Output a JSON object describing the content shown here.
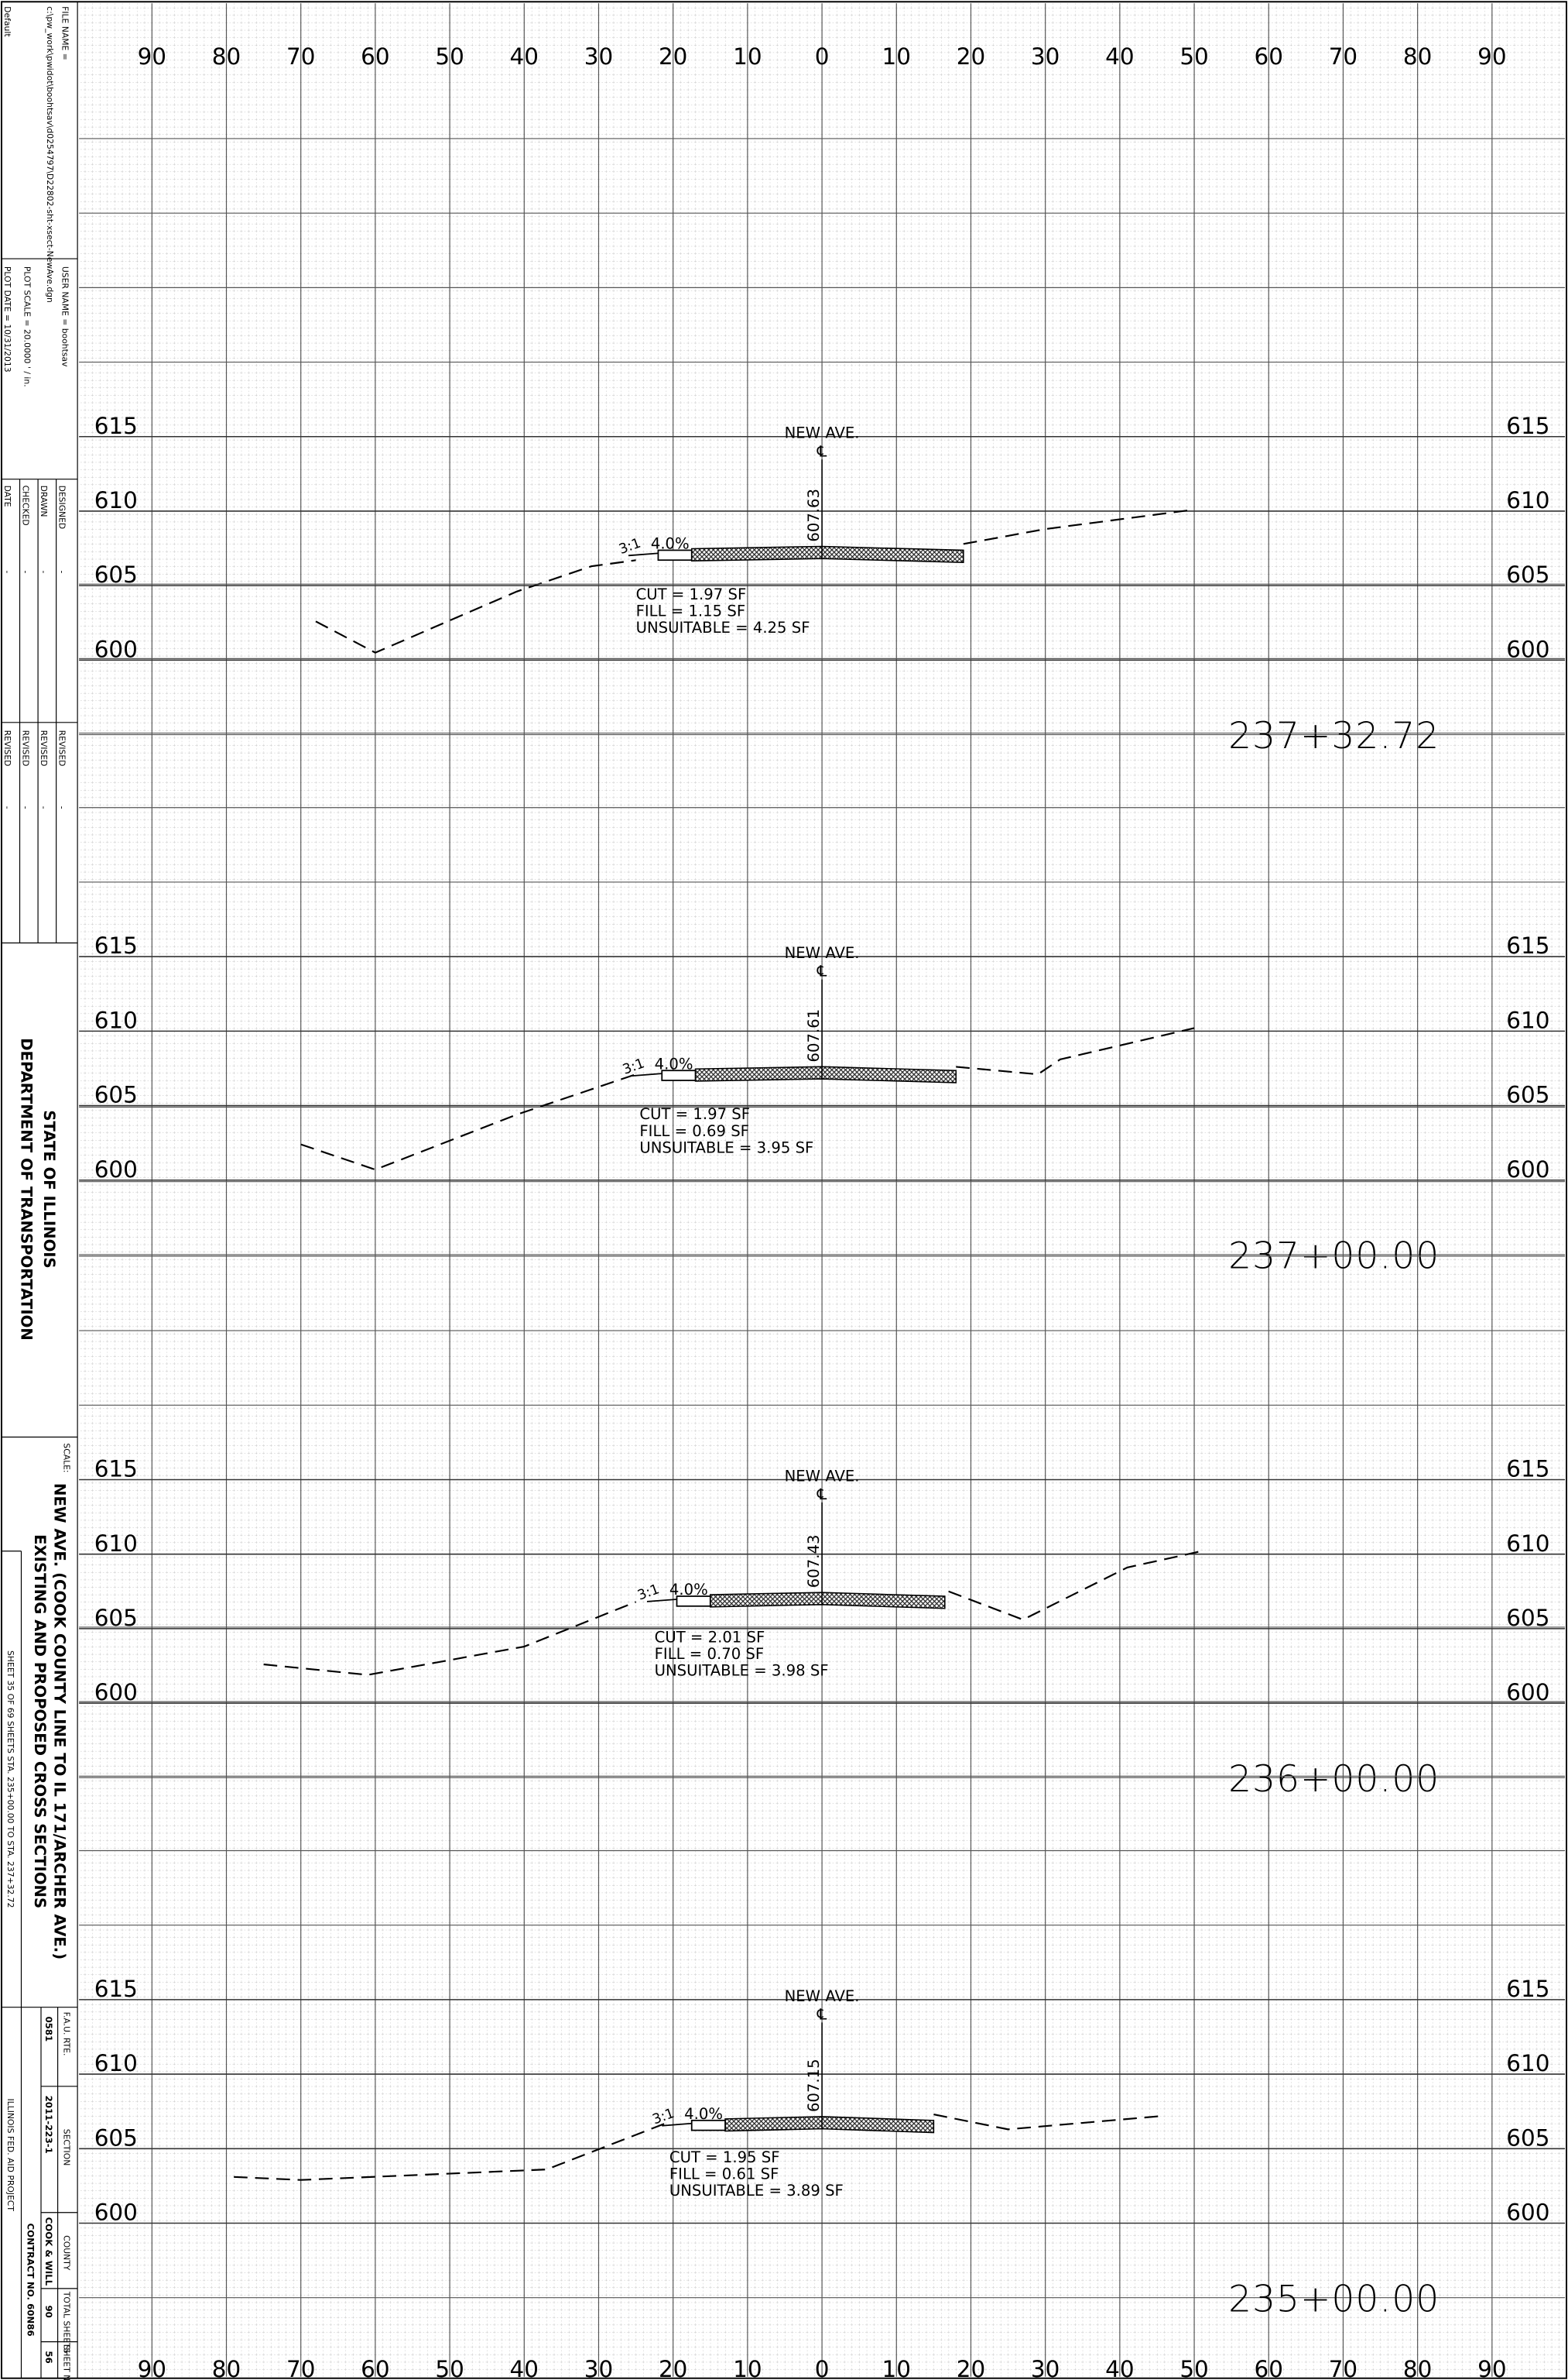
{
  "title_block": {
    "default": "Default",
    "file_name": "FILE NAME =",
    "file_path": "c:\\pw_work\\pwidot\\boohtsav\\d0254797\\D22802-sht-xsect-NewAve.dgn",
    "user_name": "USER NAME = boohtsav",
    "plot_scale": "PLOT SCALE = 20.0000 ' / in.",
    "plot_date": "PLOT DATE = 10/31/2013",
    "signoff": [
      {
        "label": "DESIGNED",
        "value": "-"
      },
      {
        "label": "DRAWN",
        "value": "-"
      },
      {
        "label": "CHECKED",
        "value": "-"
      },
      {
        "label": "DATE",
        "value": "-"
      }
    ],
    "revisions": [
      {
        "label": "REVISED",
        "value": "-"
      },
      {
        "label": "REVISED",
        "value": "-"
      },
      {
        "label": "REVISED",
        "value": "-"
      },
      {
        "label": "REVISED",
        "value": "-"
      }
    ],
    "agency": [
      "STATE OF ILLINOIS",
      "DEPARTMENT OF TRANSPORTATION"
    ],
    "scale": "SCALE:",
    "sheet_title": [
      "NEW AVE. (COOK COUNTY LINE TO IL 171/ARCHER AVE.)",
      "EXISTING AND PROPOSED CROSS SECTIONS"
    ],
    "sheet_ref": "SHEET 35 OF 69 SHEETS STA. 235+00.00 TO STA. 237+32.72",
    "route": [
      {
        "label": "F.A.U. RTE.",
        "value": "0581"
      },
      {
        "label": "SECTION",
        "value": "2011-223-1"
      },
      {
        "label": "COUNTY",
        "value": "COOK & WILL"
      },
      {
        "label": "TOTAL SHEETS",
        "value": "90"
      },
      {
        "label": "SHEET NO.",
        "value": "56"
      }
    ],
    "contract": "CONTRACT NO. 60N86",
    "project": "ILLINOIS FED. AID PROJECT"
  },
  "x_offsets": [
    {
      "value": -90,
      "label": "90"
    },
    {
      "value": -80,
      "label": "80"
    },
    {
      "value": -70,
      "label": "70"
    },
    {
      "value": -60,
      "label": "60"
    },
    {
      "value": -50,
      "label": "50"
    },
    {
      "value": -40,
      "label": "40"
    },
    {
      "value": -30,
      "label": "30"
    },
    {
      "value": -20,
      "label": "20"
    },
    {
      "value": -10,
      "label": "10"
    },
    0,
    10,
    20,
    30,
    40,
    50,
    60,
    70,
    80,
    90
  ],
  "sections": [
    {
      "station": "237+32.72",
      "road": "NEW AVE.",
      "centerline": "℄",
      "profile_grade": 607.63,
      "elevations": [
        615,
        610,
        605,
        600
      ],
      "slope": "3:1",
      "cross_slope": "4.0%",
      "quantities": [
        "CUT = 1.97 SF",
        "FILL = 1.15 SF",
        "UNSUITABLE = 4.25 SF"
      ],
      "ground": {
        "x": [
          -68,
          -60,
          -41,
          -31,
          -25,
          null,
          19,
          30,
          50
        ],
        "y": [
          602.6,
          600.5,
          604.6,
          606.3,
          606.7,
          null,
          607.8,
          608.8,
          610.1
        ]
      }
    },
    {
      "station": "237+00.00",
      "road": "NEW AVE.",
      "centerline": "℄",
      "profile_grade": 607.61,
      "elevations": [
        615,
        610,
        605,
        600
      ],
      "slope": "3:1",
      "cross_slope": "4.0%",
      "quantities": [
        "CUT = 1.97 SF",
        "FILL = 0.69 SF",
        "UNSUITABLE = 3.95 SF"
      ],
      "ground": {
        "x": [
          -70,
          -60,
          -41,
          -25,
          null,
          18,
          29,
          32,
          50
        ],
        "y": [
          602.4,
          600.7,
          604.4,
          607.1,
          null,
          607.6,
          607.1,
          608.1,
          610.2
        ]
      }
    },
    {
      "station": "236+00.00",
      "road": "NEW AVE.",
      "centerline": "℄",
      "profile_grade": 607.43,
      "elevations": [
        615,
        610,
        605,
        600
      ],
      "slope": "3:1",
      "cross_slope": "4.0%",
      "quantities": [
        "CUT = 2.01 SF",
        "FILL = 0.70 SF",
        "UNSUITABLE = 3.98 SF"
      ],
      "ground": {
        "x": [
          -75,
          -61,
          -40,
          -25,
          null,
          17,
          27,
          41,
          51
        ],
        "y": [
          602.6,
          601.9,
          603.8,
          606.8,
          null,
          607.5,
          605.6,
          609.1,
          610.2
        ]
      }
    },
    {
      "station": "235+00.00",
      "road": "NEW AVE.",
      "centerline": "℄",
      "profile_grade": 607.15,
      "elevations": [
        615,
        610,
        605,
        600
      ],
      "slope": "3:1",
      "cross_slope": "4.0%",
      "quantities": [
        "CUT = 1.95 SF",
        "FILL = 0.61 SF",
        "UNSUITABLE = 3.89 SF"
      ],
      "ground": {
        "x": [
          -79,
          -70,
          -37,
          -21,
          null,
          15,
          25,
          46
        ],
        "y": [
          603.1,
          602.9,
          603.6,
          606.7,
          null,
          607.3,
          606.3,
          607.2
        ]
      }
    }
  ]
}
